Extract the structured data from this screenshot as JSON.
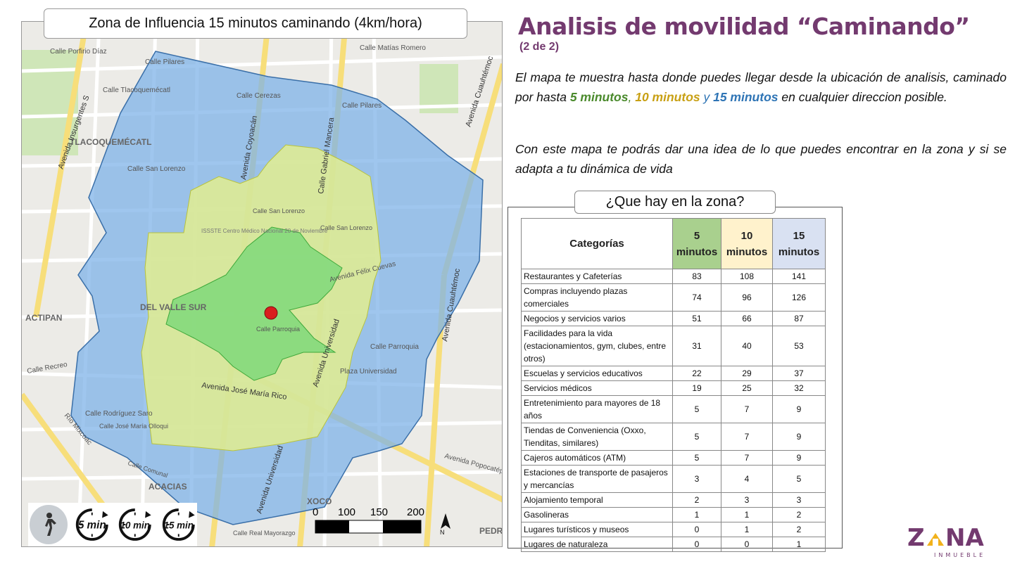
{
  "map": {
    "title": "Zona de Influencia 15 minutos caminando (4km/hora)",
    "neighborhoods": [
      "TLACOQUEMÉCATL",
      "DEL VALLE SUR",
      "ACTIPAN",
      "ACACIAS",
      "XOCO",
      "PEDR"
    ],
    "streets": {
      "coyoacan": "Avenida Coyoacán",
      "gabriel_mancera": "Calle Gabriel Mancera",
      "jose_maria_rico": "Avenida José María Rico",
      "universidad_1": "Avenida Universidad",
      "universidad_2": "Avenida Universidad",
      "cuauhtemoc_1": "Avenida Cuauhtémoc",
      "cuauhtemoc_2": "Avenida Cuauhtémoc",
      "insurgentes": "Avenida Insurgentes S",
      "felix_cuevas": "Avenida Félix Cuevas",
      "parroquia": "Calle Parroquia",
      "parroquia_2": "Calle Parroquia",
      "pilares": "Calle Pilares",
      "pilares_2": "Calle Pilares",
      "san_lorenzo": "Calle San Lorenzo",
      "san_lorenzo_2": "Calle San Lorenzo",
      "san_lorenzo_3": "Calle San Lorenzo",
      "cerezas": "Calle Cerezas",
      "tlacoquemecatl": "Calle Tlacoquemécatl",
      "recreo": "Calle Recreo",
      "rodriguez_saro": "Calle Rodríguez Saro",
      "maria_ollaqui": "Calle José María Olloqui",
      "matias_romero": "Calle Matías Romero",
      "porfirio_diaz": "Calle Porfirio Díaz",
      "poplar": "Avenida Popocatépetl",
      "real_mayorazgo": "Calle Real Mayorazgo",
      "comunal": "Calle Comunal",
      "mixcoac": "Río Mixcoac",
      "plaza": "Plaza Universidad",
      "issste": "ISSSTE Centro Médico Nacional 20 de Noviembre"
    },
    "scale": {
      "labels": [
        "0",
        "100",
        "150",
        "200"
      ]
    },
    "north_label": "N",
    "timers": [
      "5 min",
      "10 min",
      "15 min"
    ],
    "colors": {
      "zone15": "#6fa8dc",
      "zone10": "#d7e86a",
      "zone5": "#6fd36b",
      "point": "#d91e1e"
    }
  },
  "header": {
    "title": "Analisis de movilidad  “Caminando”",
    "subtitle": "(2 de 2)"
  },
  "description": {
    "p1_start": "El mapa te muestra hasta donde puedes llegar desde la ubicación de analisis, caminado por hasta ",
    "m5": "5 minutos",
    "comma": ",",
    "m10": "10 minutos",
    "and": " y ",
    "m15": "15 minutos",
    "p1_end": " en cualquier direccion posible.",
    "p2": "Con este mapa te podrás dar una idea de lo que puedes encontrar en la zona y si se adapta a tu dinámica de vida"
  },
  "zone_table": {
    "heading": "¿Que hay en la zona?",
    "col_category": "Categorías",
    "col_5": "5 minutos",
    "col_10": "10 minutos",
    "col_15": "15 minutos",
    "rows": [
      {
        "cat": "Restaurantes y Cafeterías",
        "v5": "83",
        "v10": "108",
        "v15": "141"
      },
      {
        "cat": "Compras incluyendo plazas comerciales",
        "v5": "74",
        "v10": "96",
        "v15": "126"
      },
      {
        "cat": "Negocios y servicios varios",
        "v5": "51",
        "v10": "66",
        "v15": "87"
      },
      {
        "cat": "Facilidades para la vida (estacionamientos, gym, clubes, entre otros)",
        "v5": "31",
        "v10": "40",
        "v15": "53"
      },
      {
        "cat": "Escuelas y servicios educativos",
        "v5": "22",
        "v10": "29",
        "v15": "37"
      },
      {
        "cat": "Servicios médicos",
        "v5": "19",
        "v10": "25",
        "v15": "32"
      },
      {
        "cat": "Entretenimiento para mayores de 18 años",
        "v5": "5",
        "v10": "7",
        "v15": "9"
      },
      {
        "cat": "Tiendas de Conveniencia (Oxxo, Tienditas, similares)",
        "v5": "5",
        "v10": "7",
        "v15": "9"
      },
      {
        "cat": "Cajeros automáticos (ATM)",
        "v5": "5",
        "v10": "7",
        "v15": "9"
      },
      {
        "cat": "Estaciones de transporte de pasajeros y mercancías",
        "v5": "3",
        "v10": "4",
        "v15": "5"
      },
      {
        "cat": "Alojamiento temporal",
        "v5": "2",
        "v10": "3",
        "v15": "3"
      },
      {
        "cat": "Gasolineras",
        "v5": "1",
        "v10": "1",
        "v15": "2"
      },
      {
        "cat": "Lugares turísticos y museos",
        "v5": "0",
        "v10": "1",
        "v15": "2"
      },
      {
        "cat": "Lugares de naturaleza",
        "v5": "0",
        "v10": "0",
        "v15": "1"
      }
    ]
  },
  "logo": {
    "word": "ZONA",
    "tagline": "INMUEBLE",
    "color_purple": "#733a6f",
    "color_yellow": "#f2b21b"
  }
}
